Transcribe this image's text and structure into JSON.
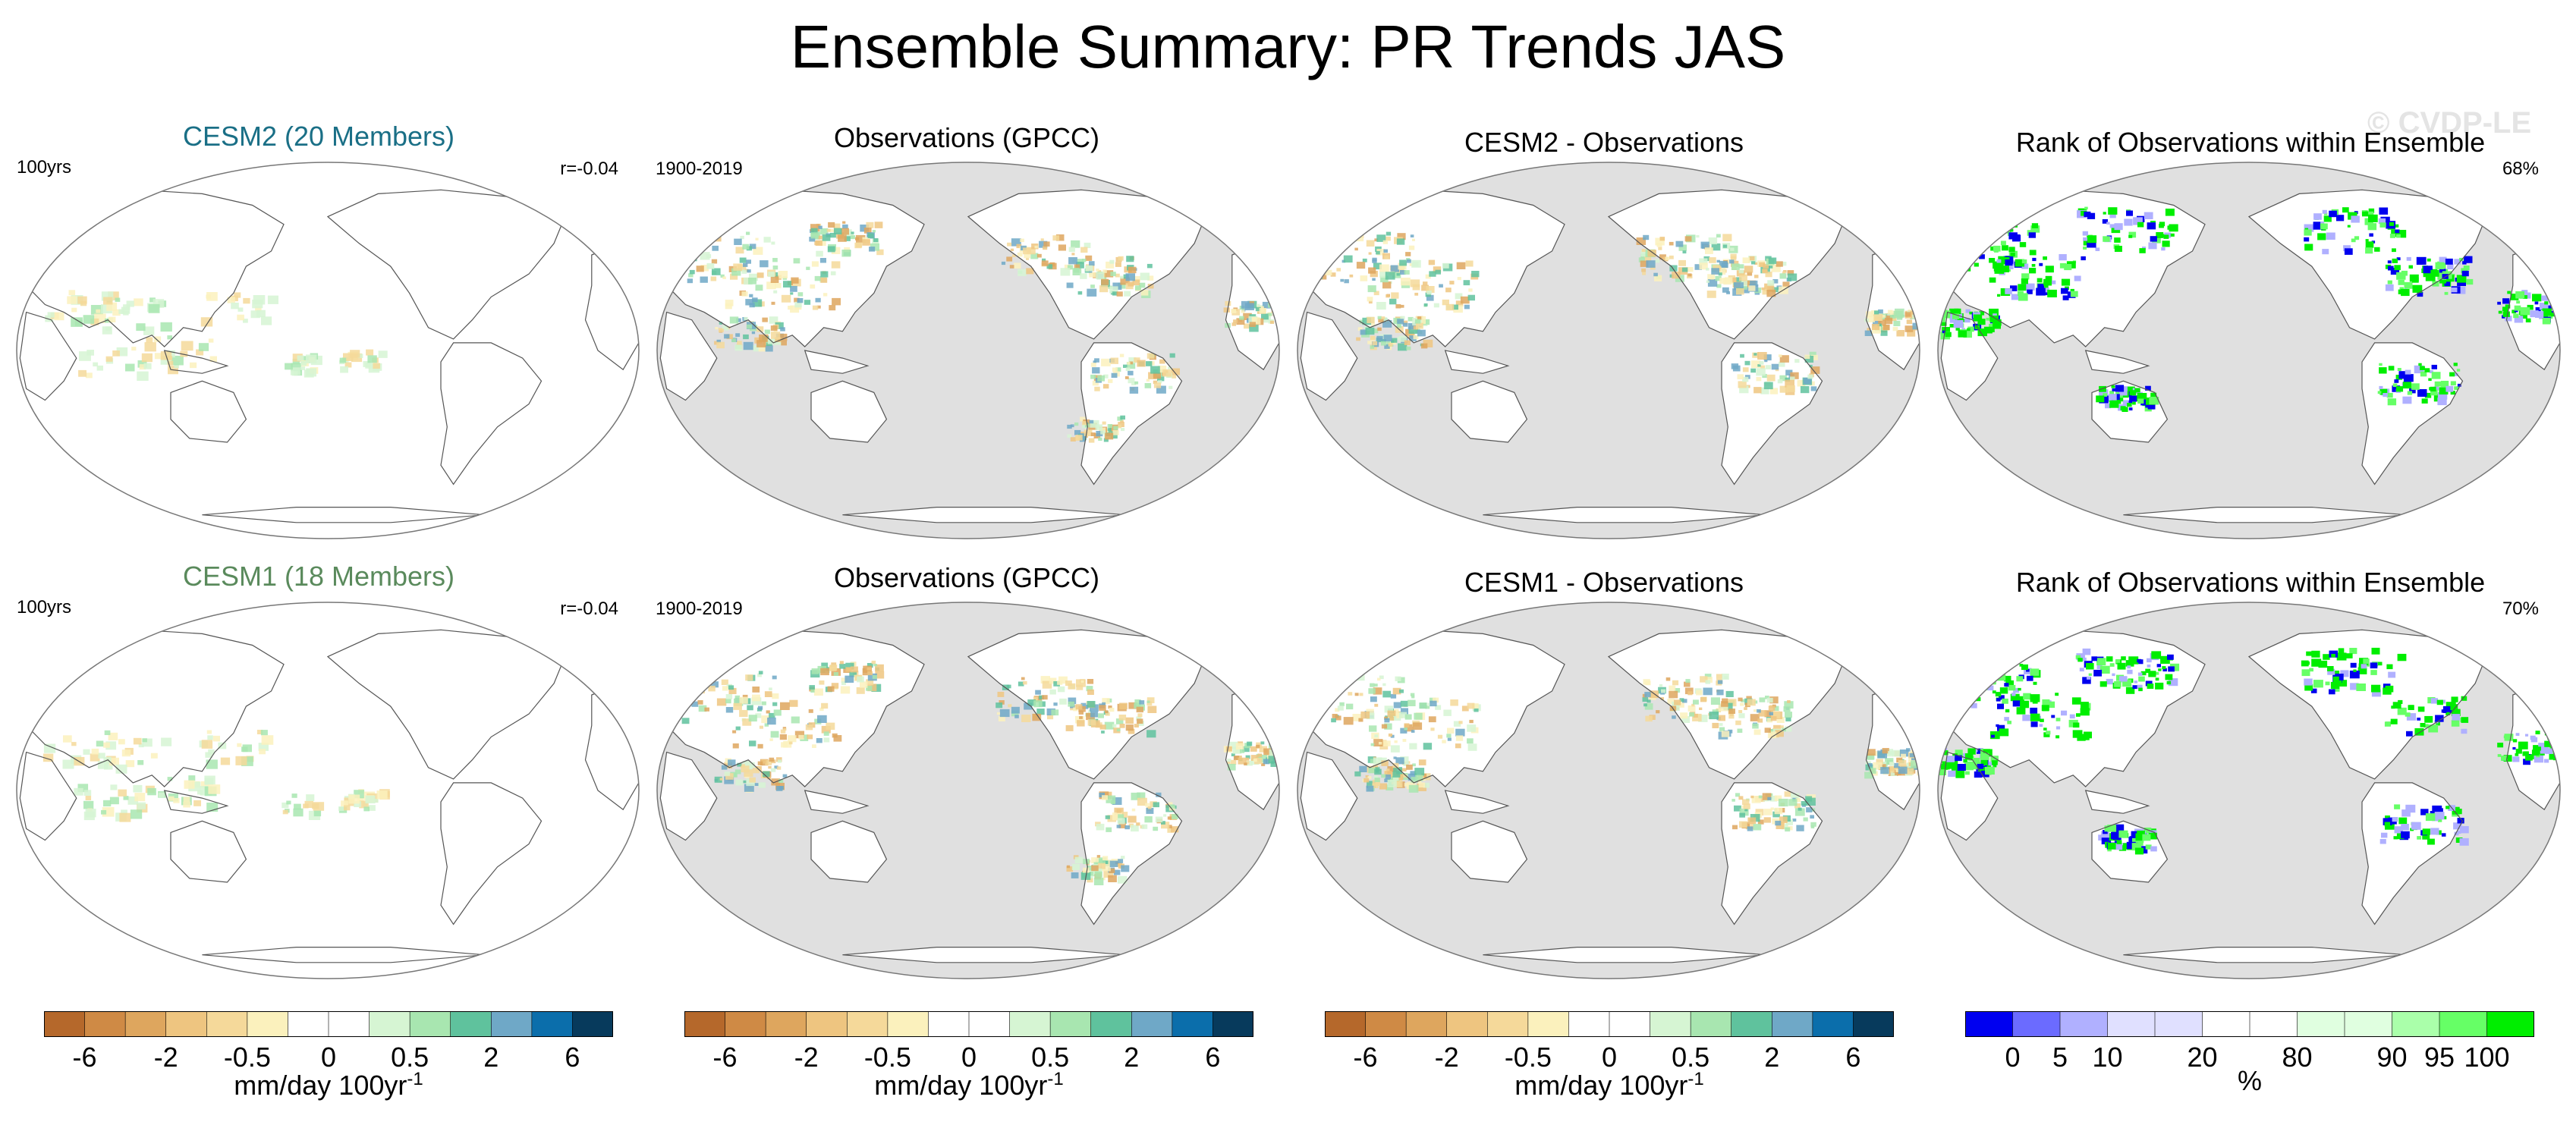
{
  "title": "Ensemble Summary: PR Trends JAS",
  "watermark": "© CVDP-LE",
  "rows": [
    {
      "model_panel": {
        "title": "CESM2 (20 Members)",
        "title_color": "#1a6f86",
        "period": "100yrs",
        "r_value": "r=-0.04"
      },
      "obs_panel": {
        "title": "Observations (GPCC)",
        "period": "1900-2019"
      },
      "diff_panel": {
        "title": "CESM2 - Observations"
      },
      "rank_panel": {
        "title": "Rank of Observations within Ensemble",
        "percent": "68%"
      }
    },
    {
      "model_panel": {
        "title": "CESM1 (18 Members)",
        "title_color": "#5a8a5c",
        "period": "100yrs",
        "r_value": "r=-0.04"
      },
      "obs_panel": {
        "title": "Observations (GPCC)",
        "period": "1900-2019"
      },
      "diff_panel": {
        "title": "CESM1 - Observations"
      },
      "rank_panel": {
        "title": "Rank of Observations within Ensemble",
        "percent": "70%"
      }
    }
  ],
  "colorbars": {
    "trend": {
      "colors": [
        "#b5682b",
        "#cf8a45",
        "#dea65e",
        "#eec580",
        "#f5d99a",
        "#fbf1bd",
        "#ffffff",
        "#ffffff",
        "#d6f5d3",
        "#a8e6b0",
        "#5fc29d",
        "#6fa8c7",
        "#0b6eab",
        "#073a5c"
      ],
      "labels": [
        "-6",
        "-2",
        "-0.5",
        "0",
        "0.5",
        "2",
        "6"
      ],
      "label_boundaries": [
        1,
        3,
        5,
        7,
        9,
        11,
        13
      ],
      "units": "mm/day 100yr",
      "units_superscript": "-1"
    },
    "rank": {
      "colors": [
        "#0000f0",
        "#6b6bff",
        "#b0b0ff",
        "#e0e0ff",
        "#e0e0ff",
        "#ffffff",
        "#ffffff",
        "#e0ffe0",
        "#e0ffe0",
        "#aaffaa",
        "#66ff66",
        "#00ee00"
      ],
      "labels": [
        "0",
        "5",
        "10",
        "20",
        "80",
        "90",
        "95",
        "100"
      ],
      "label_boundaries": [
        1,
        2,
        3,
        5,
        7,
        9,
        10,
        11
      ],
      "units": "%"
    }
  },
  "palette": {
    "ocean_gray": "#e0e0e0",
    "coastline": "#555555",
    "rank_blue": "#0000ee",
    "rank_green": "#00ee00"
  }
}
